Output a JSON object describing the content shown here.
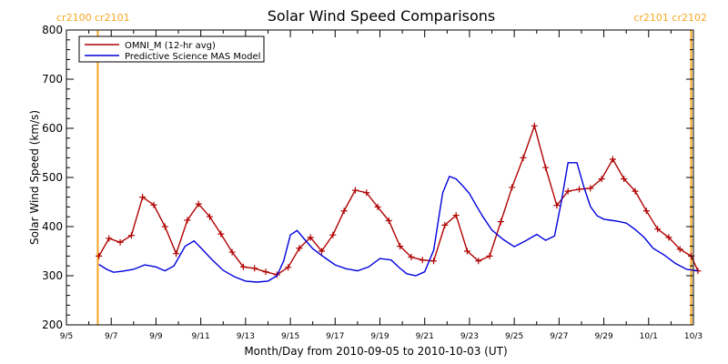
{
  "chart_data": {
    "type": "line",
    "title": "Solar Wind Speed Comparisons",
    "xlabel": "Month/Day from 2010-09-05 to 2010-10-03 (UT)",
    "ylabel": "Solar Wind Speed (km/s)",
    "xlim": [
      0,
      28
    ],
    "ylim": [
      200,
      800
    ],
    "grid": false,
    "legend_position": "top-left",
    "x_ticks": [
      {
        "x": 0,
        "label": "9/5"
      },
      {
        "x": 2,
        "label": "9/7"
      },
      {
        "x": 4,
        "label": "9/9"
      },
      {
        "x": 6,
        "label": "9/11"
      },
      {
        "x": 8,
        "label": "9/13"
      },
      {
        "x": 10,
        "label": "9/15"
      },
      {
        "x": 12,
        "label": "9/17"
      },
      {
        "x": 14,
        "label": "9/19"
      },
      {
        "x": 16,
        "label": "9/21"
      },
      {
        "x": 18,
        "label": "9/23"
      },
      {
        "x": 20,
        "label": "9/25"
      },
      {
        "x": 22,
        "label": "9/27"
      },
      {
        "x": 24,
        "label": "9/29"
      },
      {
        "x": 26,
        "label": "10/1"
      },
      {
        "x": 28,
        "label": "10/3"
      }
    ],
    "y_ticks": [
      200,
      300,
      400,
      500,
      600,
      700,
      800
    ],
    "markers": [
      {
        "x": 1.4,
        "label": "cr2100 cr2101",
        "side": "left",
        "color": "#f5a623"
      },
      {
        "x": 27.9,
        "label": "cr2101 cr2102",
        "side": "right",
        "color": "#f5a623"
      }
    ],
    "series": [
      {
        "name": "OMNI_M (12-hr avg)",
        "color": "#b00000",
        "marker": "plus",
        "x": [
          1.45,
          1.9,
          2.4,
          2.9,
          3.4,
          3.9,
          4.4,
          4.9,
          5.4,
          5.9,
          6.4,
          6.9,
          7.4,
          7.9,
          8.4,
          8.9,
          9.4,
          9.9,
          10.4,
          10.9,
          11.4,
          11.9,
          12.4,
          12.9,
          13.4,
          13.9,
          14.4,
          14.9,
          15.4,
          15.9,
          16.4,
          16.9,
          17.4,
          17.9,
          18.4,
          18.9,
          19.4,
          19.9,
          20.4,
          20.9,
          21.4,
          21.9,
          22.4,
          22.9,
          23.4,
          23.9,
          24.4,
          24.9,
          25.4,
          25.9,
          26.4,
          26.9,
          27.4,
          27.9,
          28.2
        ],
        "y": [
          340,
          376,
          368,
          382,
          460,
          444,
          400,
          345,
          413,
          446,
          420,
          385,
          348,
          318,
          315,
          308,
          302,
          317,
          356,
          378,
          350,
          383,
          432,
          474,
          469,
          440,
          412,
          360,
          338,
          332,
          330,
          403,
          423,
          350,
          330,
          340,
          410,
          480,
          540,
          605,
          520,
          443,
          472,
          476,
          478,
          497,
          537,
          497,
          472,
          432,
          395,
          378,
          354,
          340,
          310
        ]
      },
      {
        "name": "Predictive Science MAS Model",
        "color": "#0000dd",
        "marker": "none",
        "x": [
          1.45,
          1.8,
          2.1,
          2.5,
          3.0,
          3.5,
          4.0,
          4.4,
          4.8,
          5.3,
          5.7,
          6.0,
          6.5,
          7.0,
          7.5,
          8.0,
          8.5,
          9.0,
          9.4,
          9.7,
          10.0,
          10.3,
          10.6,
          11.0,
          11.5,
          12.0,
          12.5,
          13.0,
          13.5,
          14.0,
          14.5,
          14.9,
          15.2,
          15.6,
          16.0,
          16.4,
          16.8,
          17.1,
          17.4,
          17.7,
          18.0,
          18.3,
          18.6,
          19.0,
          19.5,
          20.0,
          20.5,
          21.0,
          21.4,
          21.8,
          22.1,
          22.4,
          22.8,
          23.1,
          23.4,
          23.7,
          24.0,
          24.3,
          24.6,
          25.0,
          25.4,
          25.8,
          26.2,
          26.7,
          27.2,
          27.7,
          28.2
        ],
        "y": [
          323,
          313,
          307,
          309,
          313,
          322,
          318,
          310,
          320,
          360,
          371,
          357,
          333,
          311,
          298,
          289,
          287,
          289,
          300,
          330,
          383,
          392,
          376,
          355,
          338,
          322,
          314,
          310,
          318,
          335,
          332,
          315,
          304,
          300,
          308,
          352,
          468,
          502,
          497,
          483,
          467,
          443,
          420,
          393,
          374,
          359,
          371,
          384,
          372,
          381,
          450,
          530,
          530,
          482,
          441,
          422,
          415,
          413,
          411,
          407,
          394,
          378,
          356,
          342,
          325,
          313,
          310
        ]
      }
    ]
  }
}
